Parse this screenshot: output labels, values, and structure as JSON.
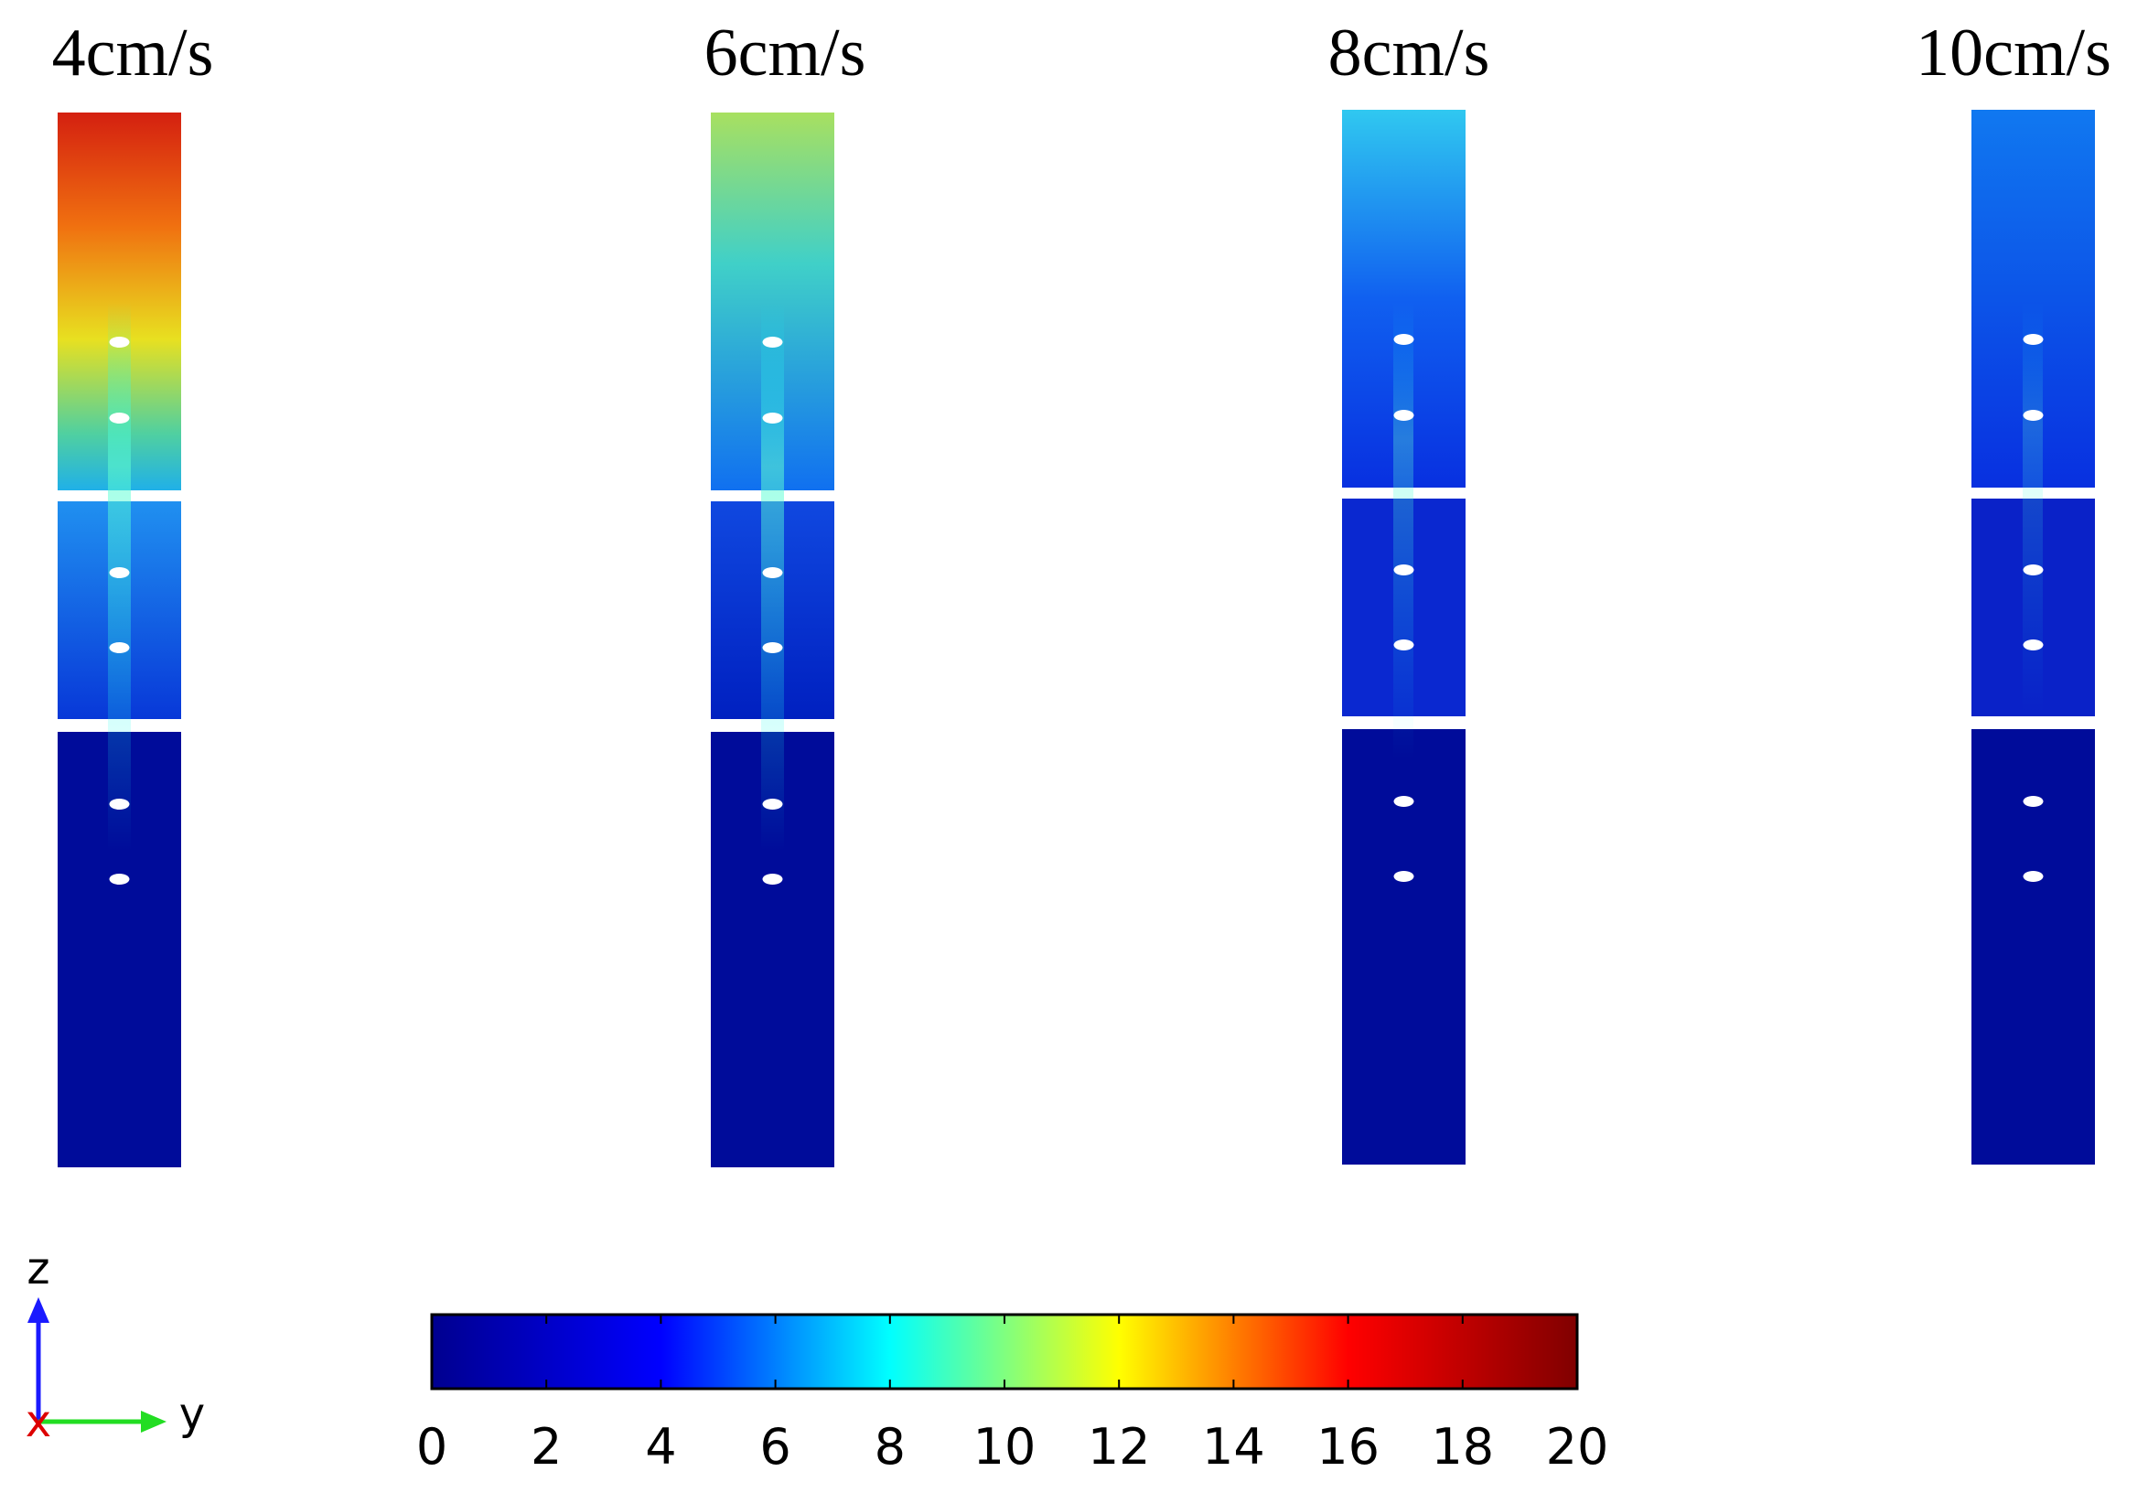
{
  "panels": [
    {
      "title": "4cm/s"
    },
    {
      "title": "6cm/s"
    },
    {
      "title": "8cm/s"
    },
    {
      "title": "10cm/s"
    }
  ],
  "colorbar": {
    "lim": [
      0,
      20
    ],
    "ticks": [
      0,
      2,
      4,
      6,
      8,
      10,
      12,
      14,
      16,
      18,
      20
    ],
    "colors": [
      "#00008f",
      "#0000ff",
      "#00ffff",
      "#ffff00",
      "#ff0000",
      "#800000"
    ]
  },
  "axes_triad": {
    "z": "z",
    "y": "y",
    "x": "x"
  }
}
